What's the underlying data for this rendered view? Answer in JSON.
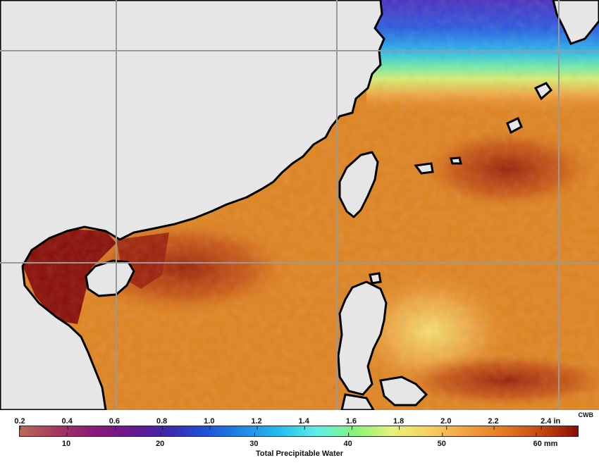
{
  "map": {
    "colors": {
      "land": "#e6e6e6",
      "coast": "#000000",
      "grid": "#9a9a9a",
      "ocean_base": "#e08420"
    }
  },
  "legend": {
    "credit": "CWB",
    "title": "Total Precipitable Water",
    "inch_labels": [
      "0.2",
      "0.4",
      "0.6",
      "0.8",
      "1.0",
      "1.2",
      "1.4",
      "1.6",
      "1.8",
      "2.0",
      "2.2",
      "2.4 in"
    ],
    "mm_labels": [
      "10",
      "20",
      "30",
      "40",
      "50",
      "60 mm"
    ],
    "scale_colors": [
      "#b86a5c",
      "#a8355f",
      "#8a1a7a",
      "#6a1890",
      "#3a2ab0",
      "#1e52d8",
      "#1f88e8",
      "#22c0ee",
      "#5ef0e8",
      "#86f27a",
      "#e8f27a",
      "#f7d060",
      "#f2a040",
      "#e47a22",
      "#c84810",
      "#8a0d06"
    ]
  }
}
